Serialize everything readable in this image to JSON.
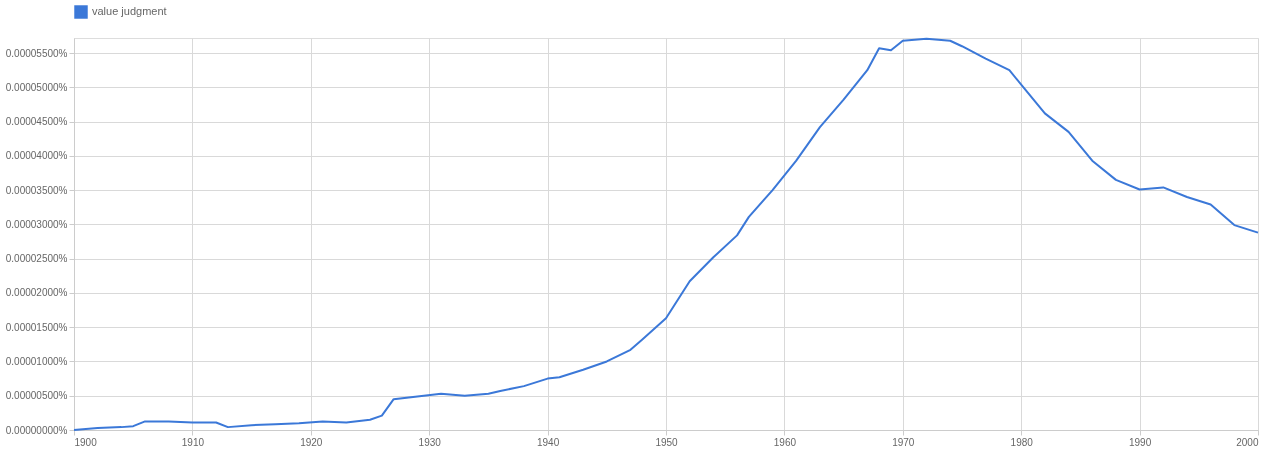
{
  "chart_data": {
    "type": "line",
    "legend": "top",
    "grid": true,
    "x": [
      1900,
      1902,
      1904,
      1905,
      1906,
      1908,
      1910,
      1912,
      1913,
      1915,
      1917,
      1919,
      1921,
      1923,
      1925,
      1926,
      1927,
      1929,
      1931,
      1933,
      1935,
      1936,
      1938,
      1940,
      1941,
      1943,
      1945,
      1947,
      1948,
      1950,
      1952,
      1954,
      1956,
      1957,
      1959,
      1961,
      1963,
      1965,
      1967,
      1968,
      1969,
      1970,
      1972,
      1974,
      1975,
      1977,
      1979,
      1980,
      1982,
      1984,
      1986,
      1988,
      1990,
      1992,
      1994,
      1996,
      1998,
      2000
    ],
    "series": [
      {
        "name": "value judgment",
        "color": "#3b78d8",
        "values": [
          0,
          2.8e-07,
          4.2e-07,
          5.6e-07,
          1.25e-06,
          1.25e-06,
          1.1e-06,
          1.1e-06,
          4.2e-07,
          7e-07,
          8.4e-07,
          9.8e-07,
          1.25e-06,
          1.1e-06,
          1.5e-06,
          2.1e-06,
          4.5e-06,
          4.9e-06,
          5.3e-06,
          5e-06,
          5.3e-06,
          5.7e-06,
          6.4e-06,
          7.5e-06,
          7.7e-06,
          8.8e-06,
          1e-05,
          1.17e-05,
          1.32e-05,
          1.63e-05,
          2.17e-05,
          2.52e-05,
          2.84e-05,
          3.11e-05,
          3.5e-05,
          3.93e-05,
          4.42e-05,
          4.82e-05,
          5.25e-05,
          5.57e-05,
          5.54e-05,
          5.68e-05,
          5.71e-05,
          5.68e-05,
          5.6e-05,
          5.42e-05,
          5.25e-05,
          5.04e-05,
          4.62e-05,
          4.35e-05,
          3.93e-05,
          3.65e-05,
          3.51e-05,
          3.54e-05,
          3.4e-05,
          3.29e-05,
          2.99e-05,
          2.88e-05
        ]
      }
    ],
    "xlim": [
      1900,
      2000
    ],
    "xticks": [
      1900,
      1910,
      1920,
      1930,
      1940,
      1950,
      1960,
      1970,
      1980,
      1990,
      2000
    ],
    "ylim": [
      0,
      5.72e-05
    ],
    "yticks": [
      {
        "value": 0,
        "label": "0.00000000%"
      },
      {
        "value": 5e-06,
        "label": "0.00000500%"
      },
      {
        "value": 1e-05,
        "label": "0.00001000%"
      },
      {
        "value": 1.5e-05,
        "label": "0.00001500%"
      },
      {
        "value": 2e-05,
        "label": "0.00002000%"
      },
      {
        "value": 2.5e-05,
        "label": "0.00002500%"
      },
      {
        "value": 3e-05,
        "label": "0.00003000%"
      },
      {
        "value": 3.5e-05,
        "label": "0.00003500%"
      },
      {
        "value": 4e-05,
        "label": "0.00004000%"
      },
      {
        "value": 4.5e-05,
        "label": "0.00004500%"
      },
      {
        "value": 5e-05,
        "label": "0.00005000%"
      },
      {
        "value": 5.5e-05,
        "label": "0.00005500%"
      }
    ]
  }
}
